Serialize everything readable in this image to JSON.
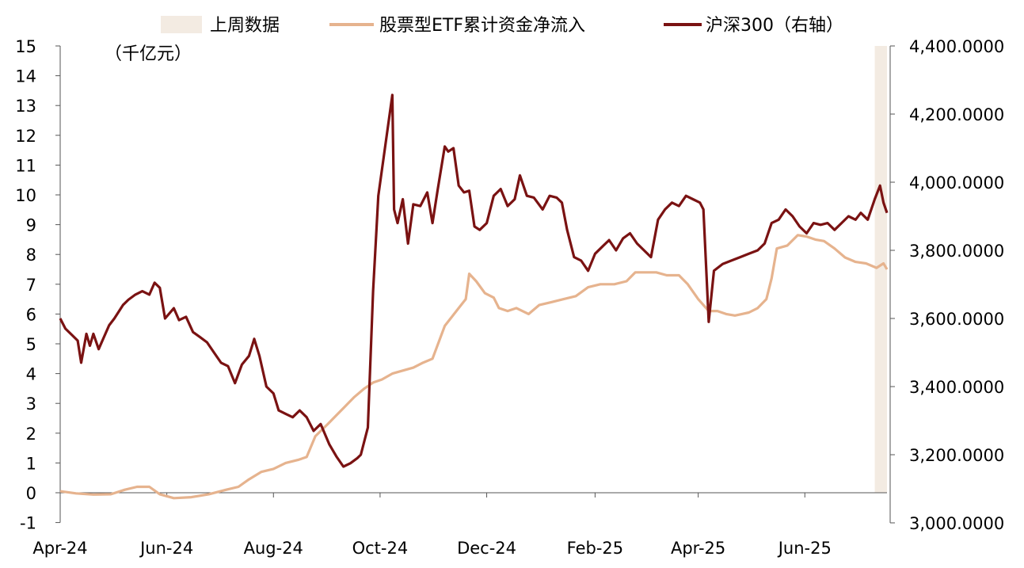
{
  "chart_data": {
    "type": "line",
    "legend": {
      "placement": "top",
      "items": [
        {
          "label": "上周数据",
          "color": "#f3ebe2",
          "marker": "bar"
        },
        {
          "label": "股票型ETF累计资金净流入",
          "color": "#e6b38e",
          "marker": "line"
        },
        {
          "label": "沪深300（右轴）",
          "color": "#7a1212",
          "marker": "line"
        }
      ]
    },
    "left_axis": {
      "unit_label": "（千亿元）",
      "ylim": [
        -1,
        15
      ],
      "ticks": [
        15,
        14,
        13,
        12,
        11,
        10,
        9,
        8,
        7,
        6,
        5,
        4,
        3,
        2,
        1,
        0,
        -1
      ],
      "tick_labels": [
        "15",
        "14",
        "13",
        "12",
        "11",
        "10",
        "9",
        "8",
        "7",
        "6",
        "5",
        "4",
        "3",
        "2",
        "1",
        "0",
        "-1"
      ]
    },
    "right_axis": {
      "ylim": [
        3000,
        4400
      ],
      "ticks": [
        4400,
        4200,
        4000,
        3800,
        3600,
        3400,
        3200,
        3000
      ],
      "tick_labels": [
        "4,400.0000",
        "4,200.0000",
        "4,000.0000",
        "3,800.0000",
        "3,600.0000",
        "3,400.0000",
        "3,200.0000",
        "3,000.0000"
      ]
    },
    "x_axis": {
      "tick_labels": [
        "Apr-24",
        "Jun-24",
        "Aug-24",
        "Oct-24",
        "Dec-24",
        "Feb-25",
        "Apr-25",
        "Jun-25"
      ],
      "tick_dates": [
        "2024-04-01",
        "2024-06-01",
        "2024-08-01",
        "2024-10-01",
        "2024-12-01",
        "2025-02-01",
        "2025-04-01",
        "2025-06-01"
      ],
      "range": [
        "2024-04-01",
        "2025-07-18"
      ]
    },
    "highlight": {
      "label": "上周数据",
      "start": "2025-07-11",
      "end": "2025-07-18"
    },
    "series": [
      {
        "name": "股票型ETF累计资金净流入",
        "axis": "left",
        "color": "#e6b38e",
        "points": [
          [
            "2024-04-01",
            0.05
          ],
          [
            "2024-04-10",
            -0.02
          ],
          [
            "2024-04-20",
            -0.06
          ],
          [
            "2024-04-30",
            -0.05
          ],
          [
            "2024-05-08",
            0.1
          ],
          [
            "2024-05-15",
            0.2
          ],
          [
            "2024-05-22",
            0.2
          ],
          [
            "2024-05-28",
            -0.05
          ],
          [
            "2024-06-05",
            -0.18
          ],
          [
            "2024-06-15",
            -0.15
          ],
          [
            "2024-06-25",
            -0.05
          ],
          [
            "2024-07-05",
            0.1
          ],
          [
            "2024-07-12",
            0.2
          ],
          [
            "2024-07-18",
            0.45
          ],
          [
            "2024-07-25",
            0.7
          ],
          [
            "2024-08-01",
            0.8
          ],
          [
            "2024-08-08",
            1.0
          ],
          [
            "2024-08-15",
            1.1
          ],
          [
            "2024-08-20",
            1.2
          ],
          [
            "2024-08-25",
            1.9
          ],
          [
            "2024-09-01",
            2.3
          ],
          [
            "2024-09-06",
            2.6
          ],
          [
            "2024-09-11",
            2.9
          ],
          [
            "2024-09-16",
            3.2
          ],
          [
            "2024-09-22",
            3.5
          ],
          [
            "2024-09-27",
            3.7
          ],
          [
            "2024-10-02",
            3.8
          ],
          [
            "2024-10-08",
            4.0
          ],
          [
            "2024-10-14",
            4.1
          ],
          [
            "2024-10-20",
            4.2
          ],
          [
            "2024-10-25",
            4.35
          ],
          [
            "2024-10-31",
            4.5
          ],
          [
            "2024-11-07",
            5.6
          ],
          [
            "2024-11-15",
            6.2
          ],
          [
            "2024-11-19",
            6.5
          ],
          [
            "2024-11-21",
            7.35
          ],
          [
            "2024-11-25",
            7.1
          ],
          [
            "2024-11-30",
            6.7
          ],
          [
            "2024-12-05",
            6.55
          ],
          [
            "2024-12-08",
            6.2
          ],
          [
            "2024-12-13",
            6.1
          ],
          [
            "2024-12-18",
            6.2
          ],
          [
            "2024-12-25",
            6.0
          ],
          [
            "2024-12-31",
            6.3
          ],
          [
            "2025-01-07",
            6.4
          ],
          [
            "2025-01-14",
            6.5
          ],
          [
            "2025-01-21",
            6.6
          ],
          [
            "2025-01-28",
            6.9
          ],
          [
            "2025-02-04",
            7.0
          ],
          [
            "2025-02-12",
            7.0
          ],
          [
            "2025-02-19",
            7.1
          ],
          [
            "2025-02-24",
            7.4
          ],
          [
            "2025-03-01",
            7.4
          ],
          [
            "2025-03-08",
            7.4
          ],
          [
            "2025-03-14",
            7.3
          ],
          [
            "2025-03-21",
            7.3
          ],
          [
            "2025-03-26",
            7.0
          ],
          [
            "2025-04-01",
            6.5
          ],
          [
            "2025-04-07",
            6.1
          ],
          [
            "2025-04-12",
            6.1
          ],
          [
            "2025-04-17",
            6.0
          ],
          [
            "2025-04-22",
            5.95
          ],
          [
            "2025-04-26",
            6.0
          ],
          [
            "2025-04-30",
            6.05
          ],
          [
            "2025-05-05",
            6.2
          ],
          [
            "2025-05-10",
            6.5
          ],
          [
            "2025-05-13",
            7.2
          ],
          [
            "2025-05-16",
            8.2
          ],
          [
            "2025-05-22",
            8.3
          ],
          [
            "2025-05-28",
            8.65
          ],
          [
            "2025-06-02",
            8.6
          ],
          [
            "2025-06-07",
            8.5
          ],
          [
            "2025-06-12",
            8.45
          ],
          [
            "2025-06-18",
            8.2
          ],
          [
            "2025-06-24",
            7.9
          ],
          [
            "2025-06-30",
            7.75
          ],
          [
            "2025-07-06",
            7.7
          ],
          [
            "2025-07-12",
            7.55
          ],
          [
            "2025-07-16",
            7.7
          ],
          [
            "2025-07-18",
            7.5
          ]
        ]
      },
      {
        "name": "沪深300（右轴）",
        "axis": "right",
        "color": "#7a1212",
        "points": [
          [
            "2024-04-01",
            3600
          ],
          [
            "2024-04-04",
            3570
          ],
          [
            "2024-04-08",
            3550
          ],
          [
            "2024-04-11",
            3535
          ],
          [
            "2024-04-13",
            3470
          ],
          [
            "2024-04-16",
            3555
          ],
          [
            "2024-04-18",
            3520
          ],
          [
            "2024-04-20",
            3555
          ],
          [
            "2024-04-23",
            3510
          ],
          [
            "2024-04-26",
            3545
          ],
          [
            "2024-04-29",
            3580
          ],
          [
            "2024-05-02",
            3600
          ],
          [
            "2024-05-07",
            3640
          ],
          [
            "2024-05-10",
            3655
          ],
          [
            "2024-05-14",
            3670
          ],
          [
            "2024-05-18",
            3680
          ],
          [
            "2024-05-22",
            3670
          ],
          [
            "2024-05-25",
            3705
          ],
          [
            "2024-05-28",
            3690
          ],
          [
            "2024-05-31",
            3600
          ],
          [
            "2024-06-05",
            3630
          ],
          [
            "2024-06-08",
            3595
          ],
          [
            "2024-06-12",
            3605
          ],
          [
            "2024-06-16",
            3560
          ],
          [
            "2024-06-20",
            3545
          ],
          [
            "2024-06-24",
            3530
          ],
          [
            "2024-06-28",
            3500
          ],
          [
            "2024-07-02",
            3470
          ],
          [
            "2024-07-06",
            3460
          ],
          [
            "2024-07-10",
            3410
          ],
          [
            "2024-07-14",
            3465
          ],
          [
            "2024-07-18",
            3490
          ],
          [
            "2024-07-21",
            3540
          ],
          [
            "2024-07-24",
            3490
          ],
          [
            "2024-07-28",
            3400
          ],
          [
            "2024-08-01",
            3380
          ],
          [
            "2024-08-04",
            3330
          ],
          [
            "2024-08-08",
            3320
          ],
          [
            "2024-08-12",
            3310
          ],
          [
            "2024-08-16",
            3330
          ],
          [
            "2024-08-20",
            3310
          ],
          [
            "2024-08-24",
            3270
          ],
          [
            "2024-08-28",
            3290
          ],
          [
            "2024-09-02",
            3230
          ],
          [
            "2024-09-06",
            3195
          ],
          [
            "2024-09-10",
            3165
          ],
          [
            "2024-09-14",
            3175
          ],
          [
            "2024-09-18",
            3190
          ],
          [
            "2024-09-20",
            3200
          ],
          [
            "2024-09-24",
            3280
          ],
          [
            "2024-09-27",
            3680
          ],
          [
            "2024-09-30",
            3960
          ],
          [
            "2024-10-08",
            4256
          ],
          [
            "2024-10-09",
            3920
          ],
          [
            "2024-10-11",
            3880
          ],
          [
            "2024-10-14",
            3950
          ],
          [
            "2024-10-17",
            3820
          ],
          [
            "2024-10-20",
            3935
          ],
          [
            "2024-10-24",
            3930
          ],
          [
            "2024-10-28",
            3970
          ],
          [
            "2024-10-31",
            3880
          ],
          [
            "2024-11-03",
            3980
          ],
          [
            "2024-11-07",
            4105
          ],
          [
            "2024-11-09",
            4090
          ],
          [
            "2024-11-12",
            4100
          ],
          [
            "2024-11-15",
            3990
          ],
          [
            "2024-11-18",
            3970
          ],
          [
            "2024-11-21",
            3975
          ],
          [
            "2024-11-24",
            3870
          ],
          [
            "2024-11-27",
            3860
          ],
          [
            "2024-12-01",
            3880
          ],
          [
            "2024-12-05",
            3960
          ],
          [
            "2024-12-09",
            3980
          ],
          [
            "2024-12-13",
            3930
          ],
          [
            "2024-12-17",
            3950
          ],
          [
            "2024-12-20",
            4020
          ],
          [
            "2024-12-24",
            3960
          ],
          [
            "2024-12-28",
            3955
          ],
          [
            "2025-01-02",
            3920
          ],
          [
            "2025-01-06",
            3960
          ],
          [
            "2025-01-10",
            3955
          ],
          [
            "2025-01-13",
            3940
          ],
          [
            "2025-01-16",
            3860
          ],
          [
            "2025-01-20",
            3780
          ],
          [
            "2025-01-24",
            3770
          ],
          [
            "2025-01-28",
            3740
          ],
          [
            "2025-02-01",
            3790
          ],
          [
            "2025-02-05",
            3810
          ],
          [
            "2025-02-09",
            3830
          ],
          [
            "2025-02-13",
            3800
          ],
          [
            "2025-02-17",
            3835
          ],
          [
            "2025-02-21",
            3850
          ],
          [
            "2025-02-25",
            3820
          ],
          [
            "2025-03-01",
            3800
          ],
          [
            "2025-03-05",
            3780
          ],
          [
            "2025-03-09",
            3890
          ],
          [
            "2025-03-13",
            3920
          ],
          [
            "2025-03-17",
            3940
          ],
          [
            "2025-03-21",
            3930
          ],
          [
            "2025-03-25",
            3960
          ],
          [
            "2025-03-29",
            3950
          ],
          [
            "2025-04-02",
            3940
          ],
          [
            "2025-04-04",
            3920
          ],
          [
            "2025-04-07",
            3590
          ],
          [
            "2025-04-10",
            3740
          ],
          [
            "2025-04-15",
            3760
          ],
          [
            "2025-04-20",
            3770
          ],
          [
            "2025-04-25",
            3780
          ],
          [
            "2025-04-30",
            3790
          ],
          [
            "2025-05-05",
            3800
          ],
          [
            "2025-05-09",
            3820
          ],
          [
            "2025-05-13",
            3880
          ],
          [
            "2025-05-17",
            3890
          ],
          [
            "2025-05-21",
            3920
          ],
          [
            "2025-05-25",
            3900
          ],
          [
            "2025-05-29",
            3870
          ],
          [
            "2025-06-02",
            3850
          ],
          [
            "2025-06-06",
            3880
          ],
          [
            "2025-06-10",
            3875
          ],
          [
            "2025-06-14",
            3880
          ],
          [
            "2025-06-18",
            3860
          ],
          [
            "2025-06-22",
            3880
          ],
          [
            "2025-06-26",
            3900
          ],
          [
            "2025-06-30",
            3890
          ],
          [
            "2025-07-03",
            3910
          ],
          [
            "2025-07-07",
            3890
          ],
          [
            "2025-07-11",
            3950
          ],
          [
            "2025-07-14",
            3990
          ],
          [
            "2025-07-16",
            3940
          ],
          [
            "2025-07-18",
            3910
          ]
        ]
      }
    ]
  }
}
